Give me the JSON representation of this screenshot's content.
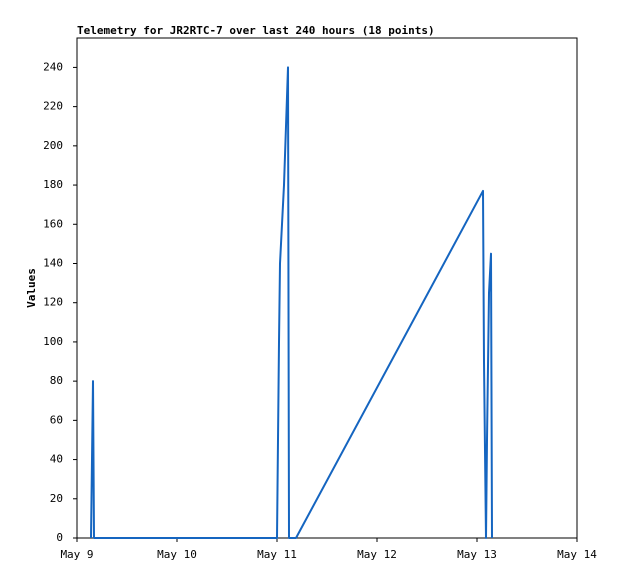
{
  "chart_data": {
    "type": "line",
    "title": "Telemetry for JR2RTC-7 over last 240 hours (18 points)",
    "y_label": "Values",
    "x": [
      9.14,
      9.15,
      9.16,
      9.17,
      11.0,
      11.02,
      11.03,
      11.07,
      11.11,
      11.12,
      11.19,
      13.06,
      13.07,
      13.09,
      13.1,
      13.12,
      13.14,
      13.15
    ],
    "series": [
      {
        "color": "#1565c0",
        "values": [
          0,
          40,
          80,
          0,
          0,
          100,
          140,
          180,
          240,
          0,
          0,
          177,
          90,
          0,
          50,
          125,
          145,
          0
        ]
      }
    ],
    "xlim": [
      9,
      14
    ],
    "xticks": [
      {
        "value": 9,
        "label": "May 9"
      },
      {
        "value": 10,
        "label": "May 10"
      },
      {
        "value": 11,
        "label": "May 11"
      },
      {
        "value": 12,
        "label": "May 12"
      },
      {
        "value": 13,
        "label": "May 13"
      },
      {
        "value": 14,
        "label": "May 14"
      }
    ],
    "ylim": [
      0,
      255
    ],
    "yticks": [
      0,
      20,
      40,
      60,
      80,
      100,
      120,
      140,
      160,
      180,
      200,
      220,
      240
    ],
    "grid": false
  }
}
